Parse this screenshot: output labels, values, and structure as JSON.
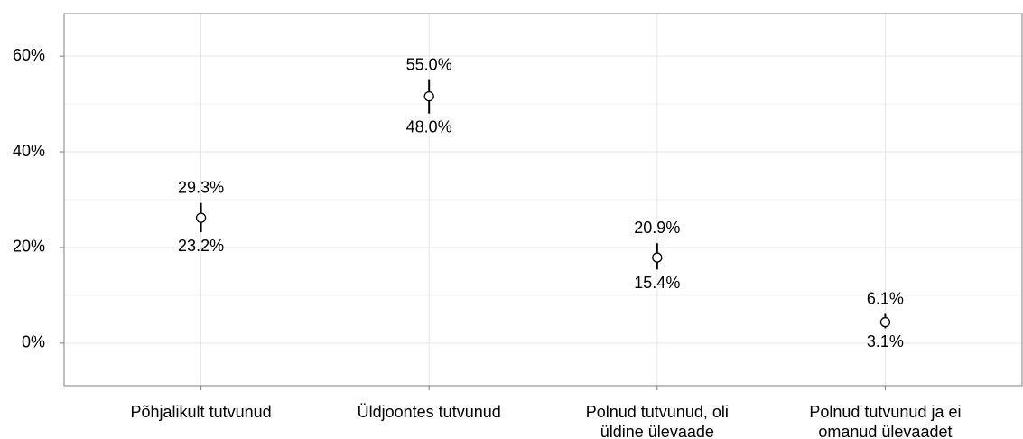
{
  "chart_data": {
    "type": "pointrange",
    "categories": [
      [
        "Põhjalikult tutvunud"
      ],
      [
        "Üldjoontes tutvunud"
      ],
      [
        "Polnud tutvunud, oli",
        "üldine ülevaade"
      ],
      [
        "Polnud tutvunud ja ei",
        "omanud ülevaadet"
      ]
    ],
    "values": [
      26.2,
      51.6,
      17.9,
      4.4
    ],
    "upper": [
      29.3,
      55.0,
      20.9,
      6.1
    ],
    "upper_labels": [
      "29.3%",
      "55.0%",
      "20.9%",
      "6.1%"
    ],
    "lower": [
      23.2,
      48.0,
      15.4,
      3.1
    ],
    "lower_labels": [
      "23.2%",
      "48.0%",
      "15.4%",
      "3.1%"
    ],
    "ylim": [
      -8.9,
      68.9
    ],
    "yticks": [
      {
        "value": 0,
        "label": "0%"
      },
      {
        "value": 20,
        "label": "20%"
      },
      {
        "value": 40,
        "label": "40%"
      },
      {
        "value": 60,
        "label": "60%"
      }
    ],
    "minor_yticks": [
      10,
      30,
      50
    ],
    "grid": true
  }
}
